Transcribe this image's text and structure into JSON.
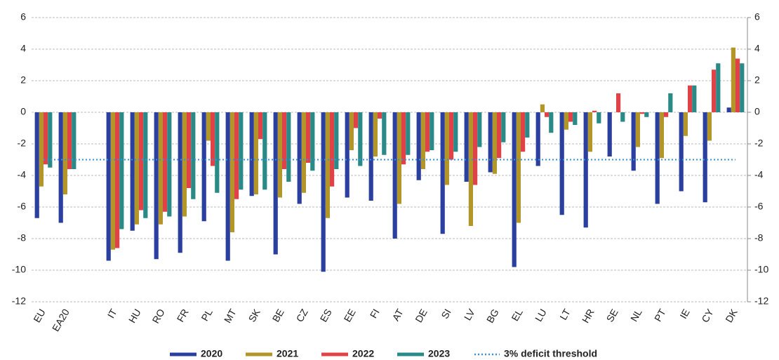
{
  "chart_data": {
    "type": "bar",
    "categories": [
      "EU",
      "EA20",
      null,
      "IT",
      "HU",
      "RO",
      "FR",
      "PL",
      "MT",
      "SK",
      "BE",
      "CZ",
      "ES",
      "EE",
      "FI",
      "AT",
      "DE",
      "SI",
      "LV",
      "BG",
      "EL",
      "LU",
      "LT",
      "HR",
      "SE",
      "NL",
      "PT",
      "IE",
      "CY",
      "DK"
    ],
    "series": [
      {
        "name": "2020",
        "color": "#2b3f9e",
        "values": [
          -6.7,
          -7.0,
          null,
          -9.4,
          -7.5,
          -9.3,
          -8.9,
          -6.9,
          -9.4,
          -5.3,
          -9.0,
          -5.8,
          -10.1,
          -5.4,
          -5.6,
          -8.0,
          -4.3,
          -7.7,
          -4.4,
          -3.8,
          -9.8,
          -3.4,
          -6.5,
          -7.3,
          -2.8,
          -3.7,
          -5.8,
          -5.0,
          -5.7,
          0.3
        ]
      },
      {
        "name": "2021",
        "color": "#b3962a",
        "values": [
          -4.7,
          -5.2,
          null,
          -8.7,
          -7.1,
          -7.1,
          -6.6,
          -1.8,
          -7.6,
          -5.2,
          -5.4,
          -5.1,
          -6.7,
          -2.4,
          -2.8,
          -5.8,
          -3.6,
          -4.6,
          -7.2,
          -3.9,
          -7.0,
          0.5,
          -1.1,
          -2.5,
          0.0,
          -2.2,
          -2.9,
          -1.5,
          -1.8,
          4.1
        ]
      },
      {
        "name": "2022",
        "color": "#e04347",
        "values": [
          -3.3,
          -3.6,
          null,
          -8.6,
          -6.2,
          -6.3,
          -4.8,
          -3.4,
          -5.5,
          -1.7,
          -3.6,
          -3.2,
          -4.7,
          -1.0,
          -0.4,
          -3.3,
          -2.5,
          -3.0,
          -4.6,
          -2.9,
          -2.5,
          -0.3,
          -0.6,
          0.1,
          1.2,
          -0.1,
          -0.3,
          1.7,
          2.7,
          3.4
        ]
      },
      {
        "name": "2023",
        "color": "#2a8a87",
        "values": [
          -3.5,
          -3.6,
          null,
          -7.4,
          -6.7,
          -6.6,
          -5.5,
          -5.1,
          -4.9,
          -4.9,
          -4.4,
          -3.7,
          -3.6,
          -3.4,
          -2.7,
          -2.7,
          -2.4,
          -2.5,
          -2.2,
          -1.9,
          -1.6,
          -1.3,
          -0.8,
          -0.7,
          -0.6,
          -0.3,
          1.2,
          1.7,
          3.1,
          3.1
        ]
      }
    ],
    "threshold": {
      "name": "3% deficit threshold",
      "value": -3,
      "color": "#3a8fd8"
    },
    "ylim": [
      -12,
      6
    ],
    "yticks": [
      -12,
      -10,
      -8,
      -6,
      -4,
      -2,
      0,
      2,
      4,
      6
    ],
    "grid": true
  }
}
